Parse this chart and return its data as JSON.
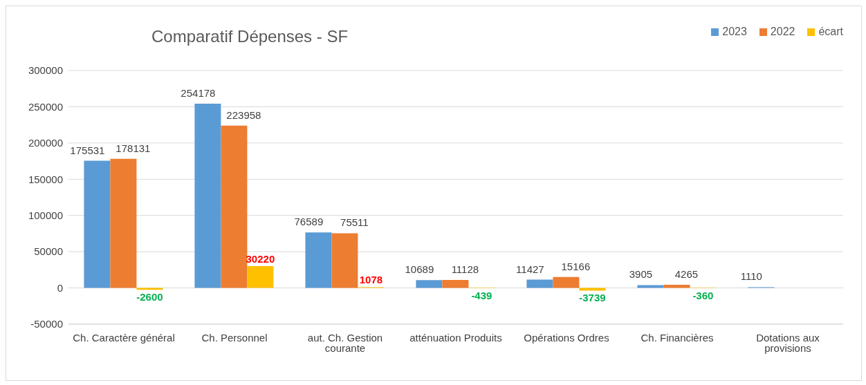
{
  "chart_data": {
    "type": "bar",
    "title": "Comparatif Dépenses - SF",
    "categories": [
      "Ch. Caractère général",
      "Ch. Personnel",
      "aut. Ch. Gestion courante",
      "atténuation Produits",
      "Opérations Ordres",
      "Ch. Financières",
      "Dotations aux provisions"
    ],
    "series": [
      {
        "name": "2023",
        "color": "#5b9bd5",
        "values": [
          175531,
          254178,
          76589,
          10689,
          11427,
          3905,
          1110
        ]
      },
      {
        "name": "2022",
        "color": "#ed7d31",
        "values": [
          178131,
          223958,
          75511,
          11128,
          15166,
          4265,
          null
        ]
      },
      {
        "name": "écart",
        "color": "#ffc000",
        "values": [
          -2600,
          30220,
          1078,
          -439,
          -3739,
          -360,
          null
        ]
      }
    ],
    "ylim": [
      -50000,
      300000
    ],
    "yticks": [
      -50000,
      0,
      50000,
      100000,
      150000,
      200000,
      250000,
      300000
    ],
    "grid": "y",
    "legend": "top right",
    "data_labels": true
  }
}
